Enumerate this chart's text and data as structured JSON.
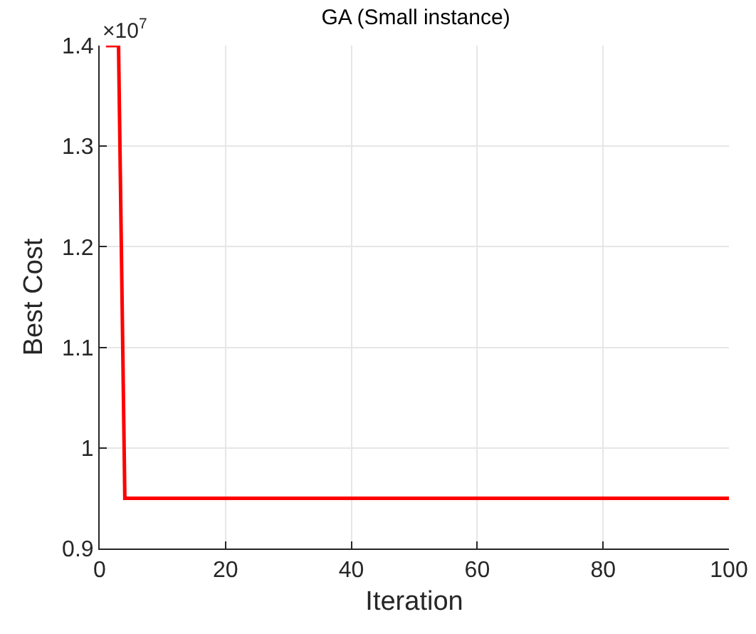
{
  "chart_data": {
    "type": "line",
    "title": "GA (Small instance)",
    "xlabel": "Iteration",
    "ylabel": "Best Cost",
    "annotations": [
      "×10$^{7}$"
    ],
    "series": [
      {
        "color": "#ff0000",
        "x": [
          1,
          3,
          4,
          100
        ],
        "values": [
          1.4,
          1.4,
          0.95,
          0.95
        ]
      }
    ],
    "xlim": [
      0,
      100
    ],
    "xticks": [
      0,
      20,
      40,
      60,
      80,
      100
    ],
    "ylim": [
      0.9,
      1.4
    ],
    "yticks": [
      0.9,
      1,
      1.1,
      1.2,
      1.3,
      1.4
    ],
    "grid": true,
    "marker": "none",
    "line_style": "solid"
  }
}
